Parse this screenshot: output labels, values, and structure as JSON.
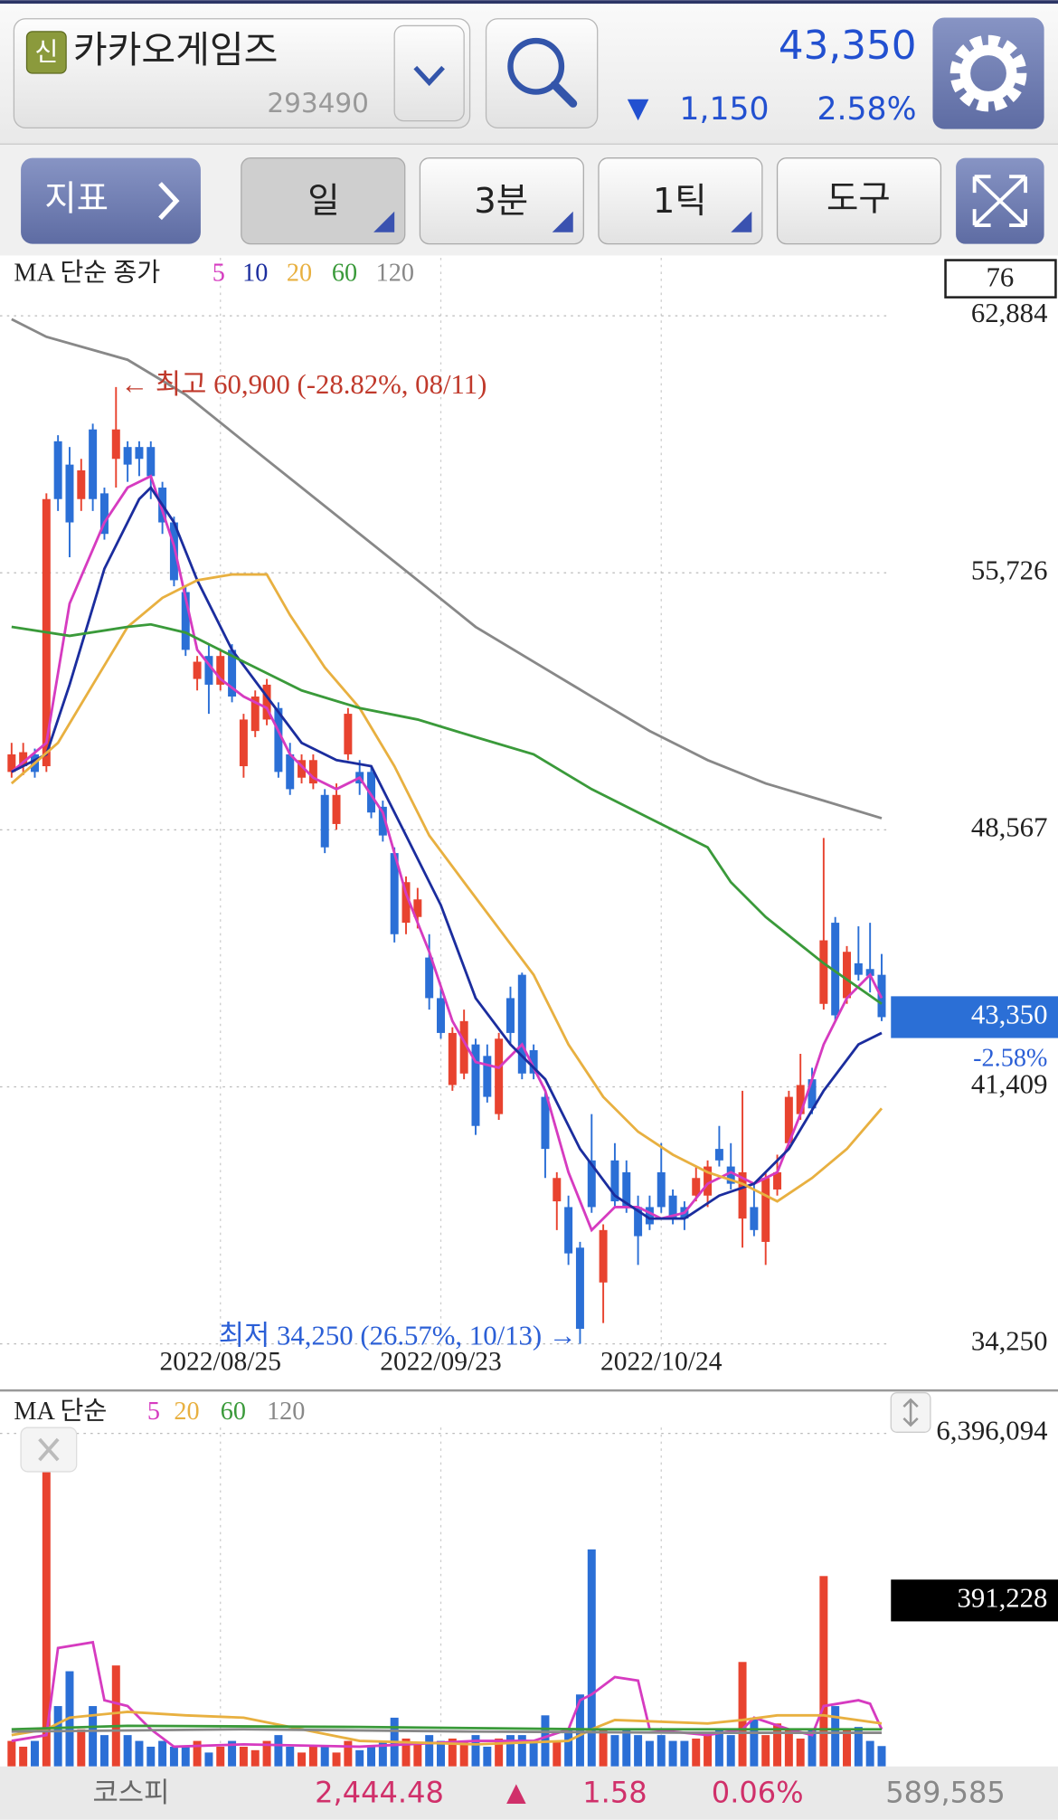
{
  "header": {
    "badge": "신",
    "name": "카카오게임즈",
    "code": "293490",
    "price": "43,350",
    "change_arrow": "▼",
    "change": "1,150",
    "change_pct": "2.58%"
  },
  "toolbar": {
    "indicator": "지표",
    "period": "일",
    "minute": "3분",
    "tick": "1틱",
    "tools": "도구"
  },
  "chart_data": [
    {
      "type": "candlestick",
      "legend_title": "MA 단순 종가",
      "box_label": "76",
      "x": [
        null,
        null,
        null,
        null,
        null,
        null,
        null,
        null,
        null,
        null,
        null,
        null,
        null,
        null,
        null,
        null,
        null,
        null,
        "2022/08/25",
        null,
        null,
        null,
        null,
        null,
        null,
        null,
        null,
        null,
        null,
        null,
        null,
        null,
        null,
        null,
        null,
        null,
        null,
        "2022/09/23",
        null,
        null,
        null,
        null,
        null,
        null,
        null,
        null,
        null,
        null,
        null,
        null,
        null,
        null,
        null,
        null,
        null,
        null,
        "2022/10/24",
        null,
        null,
        null,
        null,
        null,
        null,
        null,
        null,
        null,
        null,
        null,
        null,
        null,
        null,
        null,
        null,
        null,
        null,
        null
      ],
      "open": [
        50180,
        50340,
        50670,
        50340,
        59390,
        58740,
        57780,
        59720,
        57940,
        58900,
        59230,
        59230,
        59230,
        58100,
        57130,
        55190,
        52770,
        53410,
        52610,
        53580,
        50340,
        51320,
        51640,
        51960,
        50670,
        50020,
        49860,
        49540,
        48730,
        50670,
        50180,
        50180,
        49210,
        47920,
        45980,
        46140,
        45010,
        43880,
        41460,
        41780,
        42590,
        42270,
        40650,
        43880,
        44530,
        42430,
        41130,
        38220,
        38060,
        36930,
        39360,
        35960,
        39360,
        39030,
        38060,
        38060,
        39030,
        38380,
        38060,
        38380,
        38380,
        39680,
        39190,
        37740,
        38060,
        37090,
        38550,
        39840,
        40650,
        41620,
        43720,
        45980,
        43880,
        44850,
        44690,
        44530
      ],
      "high": [
        50990,
        50990,
        50830,
        57940,
        59560,
        59230,
        58900,
        59880,
        58100,
        60900,
        59390,
        59390,
        59390,
        58260,
        57290,
        55350,
        53410,
        53740,
        53580,
        53740,
        51800,
        52450,
        52770,
        52120,
        50990,
        50670,
        50670,
        49700,
        49860,
        51960,
        50510,
        50340,
        49380,
        48080,
        47270,
        46950,
        45660,
        44200,
        43070,
        43560,
        42750,
        42590,
        42910,
        44200,
        44590,
        42590,
        41300,
        39030,
        38380,
        37090,
        40650,
        37580,
        39840,
        39360,
        38380,
        38380,
        39840,
        38550,
        38220,
        39190,
        39360,
        40320,
        39840,
        41300,
        38710,
        39030,
        39520,
        41300,
        42330,
        41940,
        48340,
        46140,
        45330,
        45880,
        45980,
        45110
      ],
      "low": [
        50020,
        50090,
        50020,
        50180,
        57450,
        56160,
        57450,
        57450,
        56650,
        58100,
        58260,
        58420,
        57780,
        56810,
        55350,
        53410,
        52450,
        51800,
        52450,
        52120,
        50020,
        51150,
        51480,
        50020,
        49540,
        49860,
        49700,
        47920,
        48570,
        50510,
        49540,
        48890,
        48240,
        45430,
        45660,
        45820,
        43560,
        42750,
        41300,
        41620,
        40070,
        40970,
        40490,
        42590,
        41620,
        41620,
        38870,
        37420,
        36450,
        34250,
        37900,
        34830,
        38060,
        37900,
        36450,
        37420,
        37900,
        37580,
        37420,
        38220,
        38060,
        39190,
        38550,
        36930,
        37250,
        36450,
        38380,
        39680,
        40490,
        40650,
        43560,
        43240,
        43720,
        44370,
        44040,
        43240
      ],
      "close": [
        50670,
        50730,
        50180,
        57780,
        57780,
        57130,
        58580,
        57780,
        56810,
        59720,
        58740,
        58900,
        58420,
        57130,
        55520,
        53580,
        53250,
        52610,
        53410,
        52280,
        51640,
        52280,
        52610,
        50180,
        49700,
        50510,
        50510,
        48080,
        49540,
        51800,
        49860,
        49050,
        48410,
        45660,
        47110,
        46630,
        43880,
        42910,
        42910,
        43240,
        40320,
        41130,
        42750,
        42910,
        41780,
        41780,
        39680,
        38870,
        36770,
        34670,
        38060,
        37420,
        38220,
        38060,
        37250,
        37580,
        38060,
        37740,
        37740,
        38870,
        39190,
        39360,
        38710,
        39030,
        37420,
        38870,
        39030,
        41130,
        41460,
        40810,
        45490,
        43400,
        45170,
        44530,
        44500,
        43350
      ],
      "up_color": "#e8432f",
      "down_color": "#2b6fd6",
      "ylim": [
        33050,
        64500
      ],
      "yticks": [
        {
          "value": 62884,
          "label": "62,884"
        },
        {
          "value": 55726,
          "label": "55,726"
        },
        {
          "value": 48567,
          "label": "48,567"
        },
        {
          "value": 41409,
          "label": "41,409"
        },
        {
          "value": 34250,
          "label": "34,250"
        }
      ],
      "grid": true,
      "series": [
        {
          "name": "5",
          "color": "#d63bc0",
          "x": [
            0,
            3,
            5,
            8,
            10,
            12,
            14,
            16,
            18,
            20,
            22,
            24,
            26,
            28,
            30,
            32,
            34,
            36,
            38,
            40,
            42,
            44,
            46,
            48,
            50,
            52,
            54,
            56,
            58,
            60,
            62,
            64,
            66,
            68,
            70,
            72,
            74,
            75
          ],
          "values": [
            50180,
            50990,
            54870,
            57130,
            58100,
            58420,
            56480,
            53580,
            52770,
            52280,
            51960,
            50670,
            50020,
            49700,
            50020,
            49050,
            46790,
            45170,
            43240,
            42100,
            41940,
            42590,
            41300,
            39030,
            37420,
            38060,
            38060,
            37740,
            37900,
            38710,
            39030,
            38710,
            39030,
            40650,
            42590,
            43880,
            44530,
            43880
          ]
        },
        {
          "name": "10",
          "color": "#1b2d9e",
          "x": [
            0,
            3,
            5,
            8,
            11,
            12,
            14,
            16,
            19,
            22,
            25,
            28,
            31,
            34,
            37,
            40,
            43,
            46,
            49,
            52,
            55,
            58,
            61,
            64,
            67,
            70,
            73,
            75
          ],
          "values": [
            50180,
            50670,
            52610,
            55840,
            57780,
            58100,
            57130,
            55520,
            53580,
            52280,
            50990,
            50510,
            50340,
            48410,
            46470,
            43880,
            42590,
            41620,
            39680,
            38380,
            37740,
            37740,
            38380,
            38710,
            39680,
            41300,
            42590,
            42910
          ]
        },
        {
          "name": "20",
          "color": "#e8b040",
          "x": [
            0,
            4,
            7,
            10,
            13,
            16,
            19,
            22,
            24,
            27,
            30,
            33,
            36,
            39,
            42,
            45,
            48,
            51,
            54,
            57,
            60,
            63,
            66,
            69,
            72,
            75
          ],
          "values": [
            49860,
            50990,
            52610,
            54220,
            55030,
            55520,
            55680,
            55680,
            54550,
            53090,
            51960,
            50340,
            48410,
            47110,
            45820,
            44530,
            42590,
            41130,
            40160,
            39520,
            39030,
            38710,
            38220,
            38870,
            39680,
            40810
          ]
        },
        {
          "name": "60",
          "color": "#3a9a3a",
          "x": [
            0,
            5,
            10,
            12,
            15,
            20,
            25,
            30,
            35,
            40,
            45,
            50,
            55,
            60,
            62,
            65,
            70,
            75
          ],
          "values": [
            54220,
            53970,
            54220,
            54290,
            54060,
            53250,
            52450,
            51960,
            51640,
            51150,
            50670,
            49700,
            48890,
            48080,
            47110,
            46140,
            44850,
            43720
          ]
        },
        {
          "name": "120",
          "color": "#888888",
          "x": [
            0,
            3,
            10,
            15,
            20,
            25,
            30,
            35,
            40,
            45,
            50,
            55,
            60,
            65,
            70,
            75
          ],
          "values": [
            62790,
            62300,
            61660,
            60690,
            59390,
            58100,
            56810,
            55520,
            54220,
            53250,
            52280,
            51320,
            50510,
            49860,
            49380,
            48890
          ]
        }
      ],
      "annotations": [
        {
          "text": "← 최고 60,900 (-28.82%, 08/11)",
          "value": 60900,
          "color": "#c0392b"
        },
        {
          "text": "최저 34,250 (26.57%, 10/13) →",
          "value": 34250,
          "color": "#2b5fd6"
        }
      ],
      "last": {
        "value": 43350,
        "label": "43,350"
      },
      "last_change": "-2.58%"
    },
    {
      "type": "bar",
      "legend_title": "MA 단순",
      "values": [
        490000,
        379000,
        490000,
        6396094,
        1159000,
        1828000,
        713000,
        1159000,
        602000,
        1939000,
        602000,
        490000,
        379000,
        490000,
        379000,
        379000,
        490000,
        267000,
        379000,
        490000,
        379000,
        312000,
        490000,
        602000,
        379000,
        267000,
        379000,
        379000,
        267000,
        490000,
        312000,
        379000,
        490000,
        936000,
        535000,
        424000,
        602000,
        490000,
        535000,
        490000,
        602000,
        379000,
        535000,
        602000,
        602000,
        490000,
        981000,
        490000,
        713000,
        1382000,
        4168000,
        713000,
        602000,
        713000,
        602000,
        490000,
        602000,
        490000,
        490000,
        535000,
        602000,
        713000,
        602000,
        2006000,
        936000,
        602000,
        825000,
        713000,
        535000,
        713000,
        3656000,
        1159000,
        713000,
        758000,
        490000,
        391228
      ],
      "ylim": [
        0,
        6396094
      ],
      "yticks": [
        {
          "value": 6396094,
          "label": "6,396,094"
        }
      ],
      "grid": true,
      "current_label": "391,228",
      "series": [
        {
          "name": "5",
          "color": "#d63bc0",
          "x": [
            0,
            3,
            4,
            7,
            8,
            10,
            12,
            14,
            20,
            30,
            40,
            45,
            48,
            49,
            50,
            52,
            54,
            55,
            60,
            63,
            64,
            67,
            69,
            70,
            73,
            74,
            75
          ],
          "values": [
            490000,
            602000,
            2274000,
            2385000,
            1271000,
            1159000,
            713000,
            379000,
            424000,
            379000,
            490000,
            490000,
            713000,
            1271000,
            1382000,
            1716000,
            1649000,
            713000,
            602000,
            713000,
            936000,
            713000,
            602000,
            1159000,
            1271000,
            1204000,
            713000
          ]
        },
        {
          "name": "20",
          "color": "#e8b040",
          "x": [
            0,
            3,
            5,
            10,
            15,
            20,
            25,
            30,
            40,
            48,
            50,
            52,
            60,
            63,
            66,
            70,
            75
          ],
          "values": [
            602000,
            713000,
            936000,
            1048000,
            981000,
            936000,
            713000,
            490000,
            424000,
            490000,
            713000,
            892000,
            825000,
            892000,
            981000,
            981000,
            825000
          ]
        },
        {
          "name": "60",
          "color": "#3a9a3a",
          "x": [
            0,
            10,
            30,
            50,
            60,
            75
          ],
          "values": [
            713000,
            780000,
            758000,
            713000,
            713000,
            713000
          ]
        },
        {
          "name": "120",
          "color": "#888888",
          "x": [
            0,
            20,
            40,
            60,
            75
          ],
          "values": [
            669000,
            713000,
            669000,
            646000,
            646000
          ]
        }
      ]
    }
  ],
  "footer": {
    "index_name": "코스피",
    "index_value": "2,444.48",
    "arrow": "▲",
    "change": "1.58",
    "change_pct": "0.06%",
    "volume": "589,585"
  }
}
